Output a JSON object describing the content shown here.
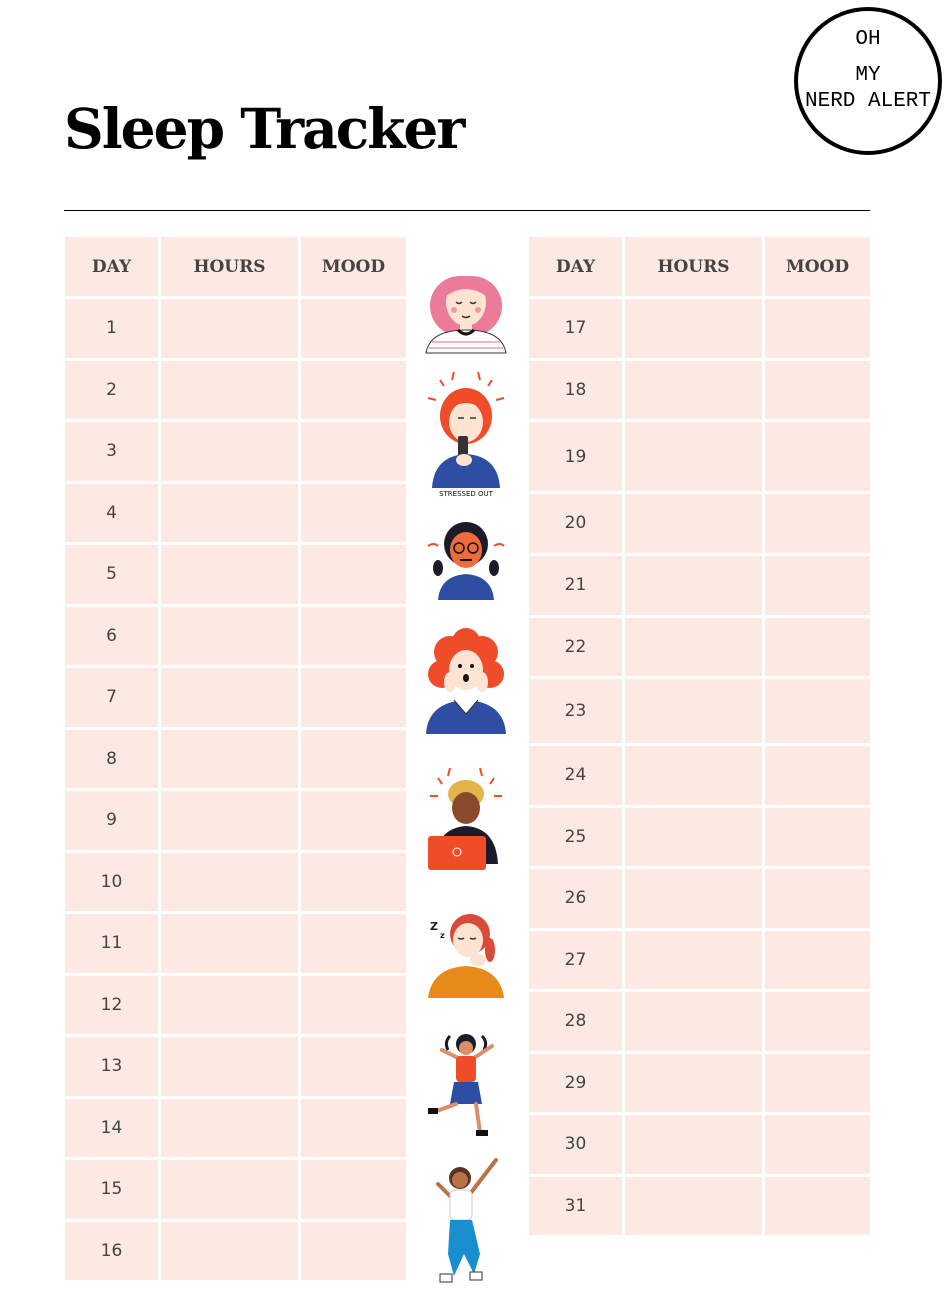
{
  "logo": {
    "line1": "OH",
    "line2": "MY",
    "line3": "NERD ALERT"
  },
  "title": "Sleep Tracker",
  "headers": {
    "day": "DAY",
    "hours": "HOURS",
    "mood": "MOOD"
  },
  "left_days": [
    "1",
    "2",
    "3",
    "4",
    "5",
    "6",
    "7",
    "8",
    "9",
    "10",
    "11",
    "12",
    "13",
    "14",
    "15",
    "16"
  ],
  "right_days": [
    "17",
    "18",
    "19",
    "20",
    "21",
    "22",
    "23",
    "24",
    "25",
    "26",
    "27",
    "28",
    "29",
    "30",
    "31"
  ],
  "sticker_caption": "STRESSED OUT",
  "colors": {
    "cell": "#fce9e3",
    "text": "#444444",
    "accent_red": "#ef4d2a",
    "blue": "#2d4ea3"
  }
}
